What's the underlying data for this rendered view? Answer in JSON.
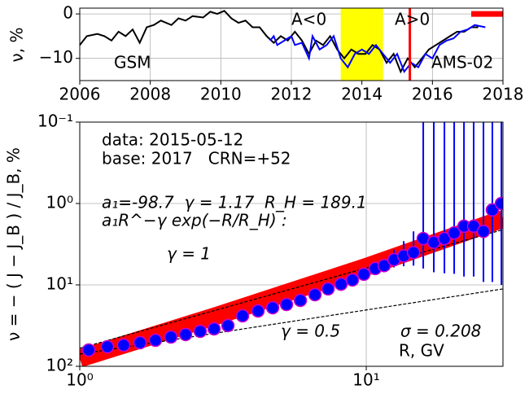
{
  "chart_data": [
    {
      "type": "line",
      "y_label": "ν, %",
      "xlim": [
        2006,
        2018
      ],
      "ylim": [
        -15,
        1.3
      ],
      "xticks": [
        2006,
        2008,
        2010,
        2012,
        2014,
        2016,
        2018
      ],
      "yticks": [
        0,
        {
          "value": -10,
          "label": "−10"
        }
      ],
      "grid": true,
      "series": [
        {
          "name": "GSM",
          "color": "#000000",
          "x": [
            2006.0,
            2006.2,
            2006.5,
            2006.7,
            2006.9,
            2007.1,
            2007.3,
            2007.5,
            2007.7,
            2007.9,
            2008.1,
            2008.3,
            2008.6,
            2008.8,
            2009.0,
            2009.2,
            2009.5,
            2009.7,
            2009.9,
            2010.1,
            2010.3,
            2010.5,
            2010.7,
            2010.9,
            2011.1,
            2011.3,
            2011.5,
            2011.7,
            2011.9,
            2012.1,
            2012.3,
            2012.5,
            2012.7,
            2012.9,
            2013.1,
            2013.3,
            2013.5,
            2013.7,
            2013.9,
            2014.1,
            2014.3,
            2014.5,
            2014.7,
            2014.9,
            2015.1,
            2015.3,
            2015.5,
            2015.7,
            2015.9,
            2016.1,
            2016.3,
            2016.5,
            2016.7,
            2016.9,
            2017.1,
            2017.3
          ],
          "values": [
            -7,
            -5,
            -4.5,
            -5,
            -6,
            -4,
            -5,
            -3.5,
            -6.5,
            -3,
            -2.5,
            -1.5,
            -2.5,
            -1,
            -1.5,
            -0.5,
            -0.8,
            0.5,
            0,
            0.7,
            -1,
            -2,
            -1.5,
            -3,
            -3,
            -5,
            -6.5,
            -5,
            -6,
            -4,
            -6,
            -9,
            -6,
            -7,
            -5,
            -8,
            -10,
            -8,
            -9,
            -9,
            -7,
            -8,
            -11,
            -9,
            -13,
            -10,
            -12,
            -10,
            -8,
            -7,
            -6,
            -5,
            -4,
            -4,
            -3,
            -3
          ]
        },
        {
          "name": "AMS-02",
          "color": "#0000ff",
          "x": [
            2011.4,
            2011.5,
            2011.6,
            2011.8,
            2012.0,
            2012.1,
            2012.3,
            2012.5,
            2012.6,
            2012.8,
            2013.0,
            2013.2,
            2013.4,
            2013.6,
            2013.8,
            2014.0,
            2014.2,
            2014.4,
            2014.6,
            2014.8,
            2015.0,
            2015.2,
            2015.4,
            2015.6,
            2015.8,
            2016.0,
            2016.2,
            2016.4,
            2016.6,
            2016.8,
            2017.0,
            2017.2,
            2017.5
          ],
          "values": [
            -6,
            -5,
            -7,
            -6,
            -5,
            -7,
            -6.5,
            -10,
            -5,
            -8,
            -7,
            -5,
            -10,
            -12,
            -9,
            -8,
            -9,
            -7,
            -9,
            -11,
            -9,
            -13,
            -11,
            -12,
            -9,
            -10,
            -7,
            -6,
            -5.5,
            -4,
            -3.5,
            -2.5,
            -3
          ]
        }
      ],
      "span": {
        "x": [
          2013.4,
          2014.6
        ],
        "color": "#ffff00"
      },
      "vline": {
        "x": 2015.36,
        "color": "#ff0000"
      },
      "bar": {
        "x": [
          2017.1,
          2018
        ],
        "y": 0,
        "color": "#ff0000"
      },
      "annotations": [
        "A<0",
        "A>0"
      ]
    },
    {
      "type": "scatter",
      "log": true,
      "y_label": "ν = − ( J − J_B ) / J_B, %",
      "x_label": "R, GV",
      "xlim": [
        1,
        30
      ],
      "ylim": [
        100,
        0.1
      ],
      "xticks": [
        {
          "value": 1,
          "label": "10⁰"
        },
        {
          "value": 10,
          "label": "10¹"
        }
      ],
      "yticks": [
        {
          "value": 0.1,
          "label": "10⁻¹"
        },
        {
          "value": 1,
          "label": "10⁰"
        },
        {
          "value": 10,
          "label": "10¹"
        },
        {
          "value": 100,
          "label": "10²"
        }
      ],
      "grid": true,
      "points": {
        "color": "#0000ff",
        "edgecolor": "#cc00cc",
        "x": [
          1.075,
          1.249,
          1.423,
          1.623,
          1.837,
          2.081,
          2.341,
          2.633,
          2.943,
          3.289,
          3.7,
          4.19,
          4.713,
          5.268,
          5.888,
          6.622,
          7.357,
          8.165,
          8.946,
          9.806,
          10.75,
          11.55,
          12.5,
          13.51,
          14.62,
          15.81,
          17.21,
          18.74,
          20.27,
          21.93,
          23.71,
          25.65,
          27.55,
          29.63
        ],
        "values": [
          63.1,
          57.5,
          55.0,
          51.3,
          47.9,
          43.7,
          40.7,
          37.2,
          34.7,
          31.6,
          24.0,
          20.9,
          19.1,
          17.4,
          15.5,
          13.2,
          11.2,
          9.8,
          8.7,
          7.4,
          6.3,
          5.8,
          4.9,
          4.4,
          4.0,
          2.7,
          3.0,
          2.7,
          2.3,
          1.9,
          1.9,
          2.2,
          1.2,
          1.0
        ],
        "errors": [
          1.5,
          1.3,
          1.2,
          1.1,
          1.0,
          0.9,
          0.8,
          0.8,
          0.7,
          0.7,
          0.6,
          0.5,
          0.5,
          0.5,
          0.4,
          0.4,
          0.4,
          0.4,
          0.5,
          0.6,
          0.8,
          1.0,
          1.2,
          1.5,
          1.8,
          3.6,
          4,
          4.5,
          5,
          6,
          6,
          7,
          8,
          9
        ]
      },
      "fit": {
        "color": "#ff0000",
        "x": [
          1,
          3,
          10,
          30
        ],
        "values": [
          80,
          24,
          6.0,
          1.55
        ]
      },
      "guides": [
        {
          "x": [
            1,
            30
          ],
          "values": [
            60,
            2.1
          ]
        },
        {
          "x": [
            1,
            30
          ],
          "values": [
            70.8,
            11.2
          ]
        }
      ],
      "annotations": [
        "data: 2015-05-12",
        "base: 2017   CRN=+52",
        "a₁=-98.7  γ = 1.17  R_H = 189.1",
        "a₁R^−γ exp(−R/R_H) :",
        "γ = 1",
        "γ = 0.5",
        "σ = 0.208"
      ]
    }
  ]
}
